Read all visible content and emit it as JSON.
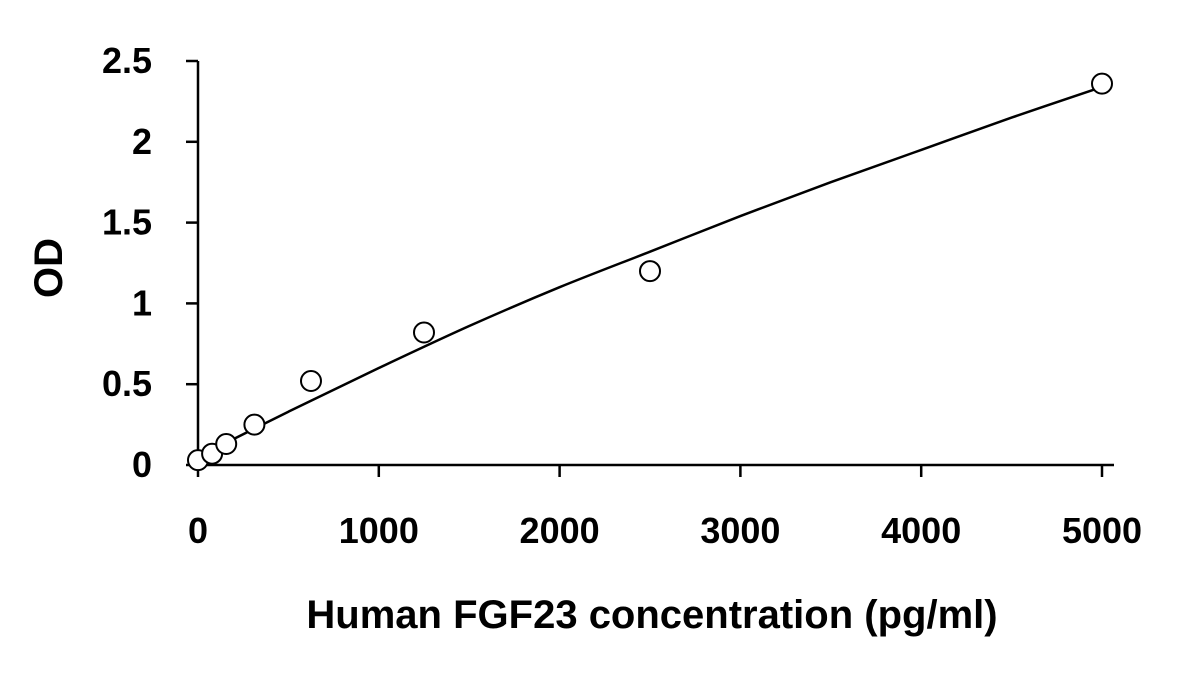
{
  "chart_data": {
    "type": "scatter",
    "title": "",
    "xlabel": "Human FGF23 concentration (pg/ml)",
    "ylabel": "OD",
    "xlim": [
      0,
      5000
    ],
    "ylim": [
      0,
      2.5
    ],
    "x_ticks": [
      0,
      1000,
      2000,
      3000,
      4000,
      5000
    ],
    "x_tick_labels": [
      "0",
      "1000",
      "2000",
      "3000",
      "4000",
      "5000"
    ],
    "y_ticks": [
      0,
      0.5,
      1,
      1.5,
      2,
      2.5
    ],
    "y_tick_labels": [
      "0",
      "0.5",
      "1",
      "1.5",
      "2",
      "2.5"
    ],
    "grid": false,
    "legend": false,
    "series": [
      {
        "marker": "open-circle",
        "points": [
          {
            "x": 0,
            "y": 0.03
          },
          {
            "x": 78,
            "y": 0.07
          },
          {
            "x": 156,
            "y": 0.13
          },
          {
            "x": 312,
            "y": 0.25
          },
          {
            "x": 625,
            "y": 0.52
          },
          {
            "x": 1250,
            "y": 0.82
          },
          {
            "x": 2500,
            "y": 1.2
          },
          {
            "x": 5000,
            "y": 2.36
          }
        ]
      }
    ],
    "fit_curve": {
      "style": "smooth line",
      "points": [
        {
          "x": 0,
          "y": 0.05
        },
        {
          "x": 500,
          "y": 0.33
        },
        {
          "x": 1000,
          "y": 0.6
        },
        {
          "x": 1500,
          "y": 0.86
        },
        {
          "x": 2000,
          "y": 1.1
        },
        {
          "x": 2500,
          "y": 1.32
        },
        {
          "x": 3000,
          "y": 1.54
        },
        {
          "x": 3500,
          "y": 1.75
        },
        {
          "x": 4000,
          "y": 1.95
        },
        {
          "x": 4500,
          "y": 2.15
        },
        {
          "x": 5000,
          "y": 2.34
        }
      ]
    },
    "colors": {
      "line": "#000000",
      "marker_fill": "#ffffff",
      "marker_stroke": "#000000",
      "background": "#ffffff"
    }
  }
}
